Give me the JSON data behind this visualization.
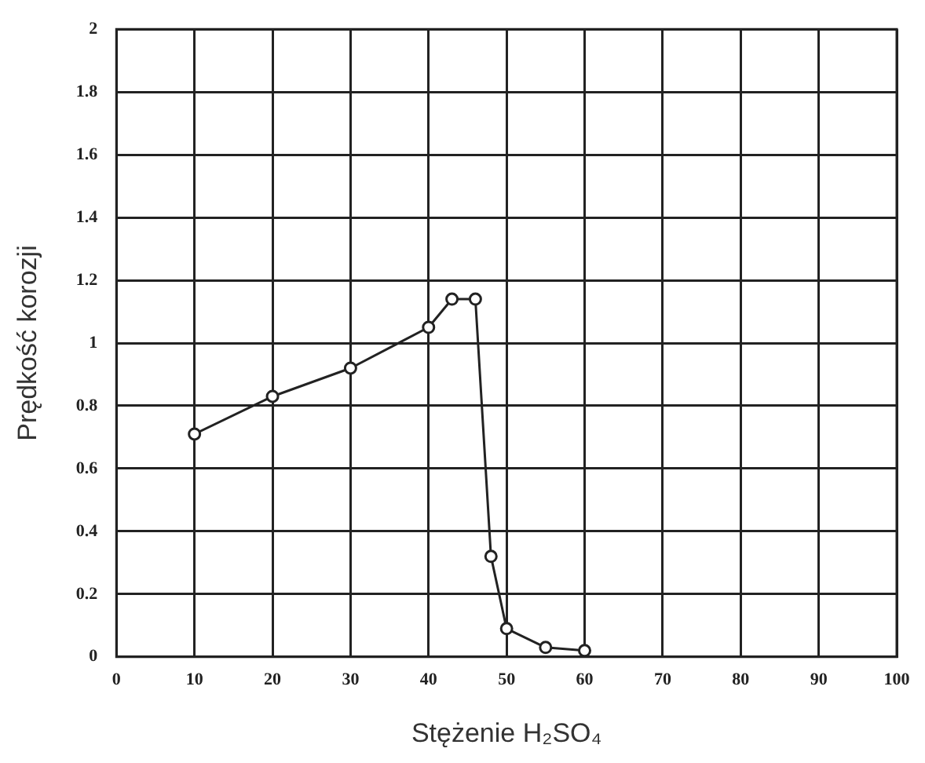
{
  "chart_data": {
    "type": "line",
    "xlabel": "Stężenie H₂SO₄",
    "ylabel": "Prędkość korozji",
    "series": [
      {
        "color": "#222222",
        "x": [
          10,
          20,
          30,
          40,
          43,
          46,
          48,
          50,
          55,
          60
        ],
        "values": [
          0.71,
          0.83,
          0.92,
          1.05,
          1.14,
          1.14,
          0.32,
          0.09,
          0.03,
          0.02
        ]
      }
    ],
    "xlim": [
      0,
      100
    ],
    "xticks": [
      0,
      10,
      20,
      30,
      40,
      50,
      60,
      70,
      80,
      90,
      100
    ],
    "ylim": [
      0,
      2
    ],
    "yticks": [
      0,
      0.2,
      0.4,
      0.6,
      0.8,
      1,
      1.2,
      1.4,
      1.6,
      1.8,
      2
    ],
    "grid": true,
    "legend": false,
    "marker": "circle",
    "line_style": "solid"
  }
}
